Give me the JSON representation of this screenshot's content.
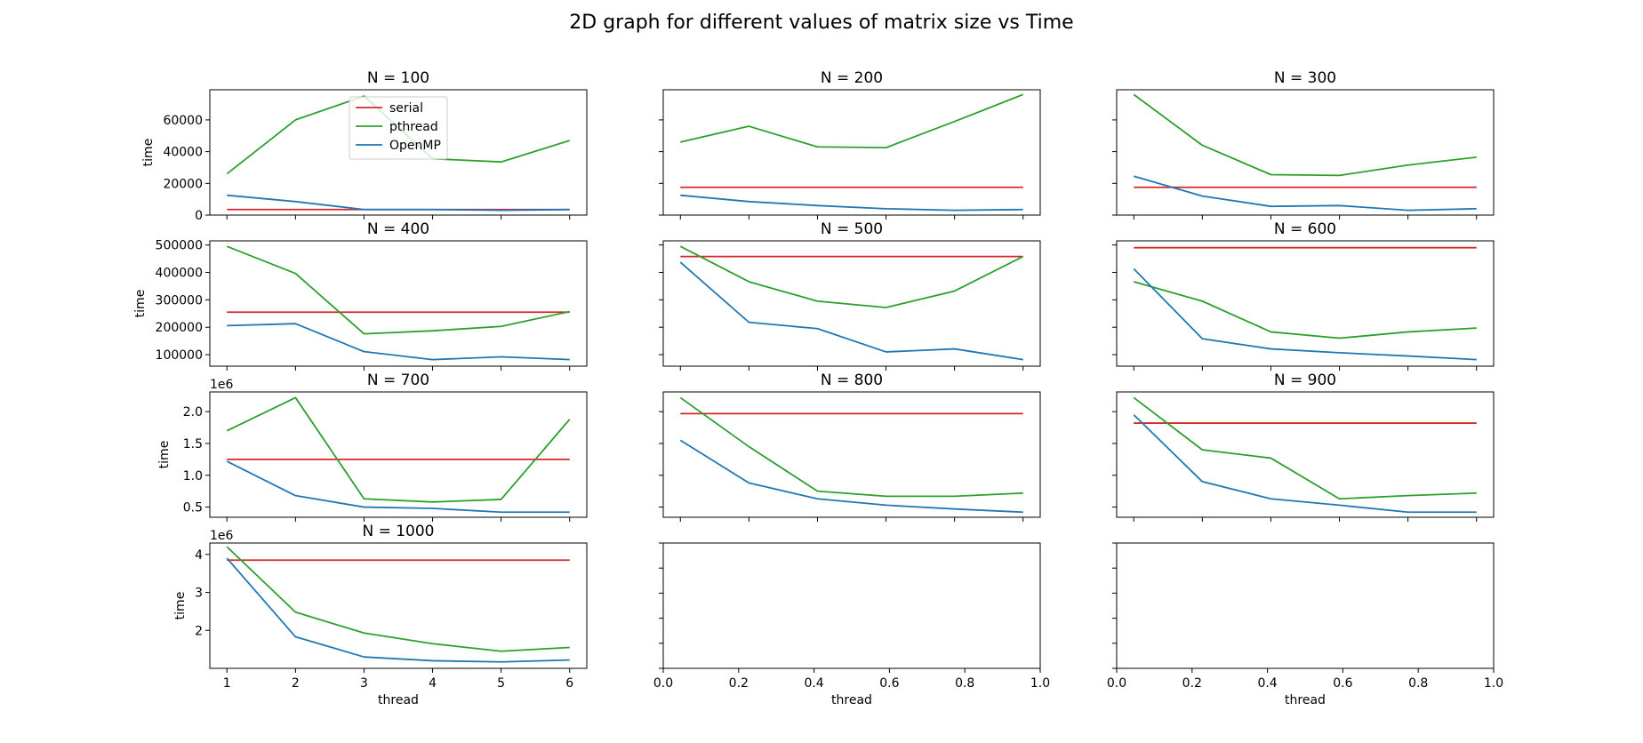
{
  "figure": {
    "suptitle": "2D graph for different values of matrix size vs Time",
    "legend": {
      "entries": [
        {
          "label": "serial",
          "color": "#d62728"
        },
        {
          "label": "pthread",
          "color": "#2ca02c"
        },
        {
          "label": "OpenMP",
          "color": "#1f77b4"
        }
      ]
    }
  },
  "chart_data": [
    {
      "type": "line",
      "title": "N = 100",
      "xlabel": "",
      "ylabel": "time",
      "x": [
        1,
        2,
        3,
        4,
        5,
        6
      ],
      "xlim": [
        0.75,
        6.25
      ],
      "ylim": [
        0,
        79000
      ],
      "yticks": [
        0,
        20000,
        40000,
        60000
      ],
      "ytick_labels": [
        "0",
        "20000",
        "40000",
        "60000"
      ],
      "offset_text": "",
      "xtick_labels_visible": false,
      "ytick_labels_visible": true,
      "legend_placement": "upper center",
      "series": [
        {
          "name": "serial",
          "color": "#d62728",
          "values": [
            3500,
            3500,
            3500,
            3500,
            3500,
            3500
          ]
        },
        {
          "name": "pthread",
          "color": "#2ca02c",
          "values": [
            26000,
            60000,
            75000,
            35500,
            33500,
            47000
          ]
        },
        {
          "name": "OpenMP",
          "color": "#1f77b4",
          "values": [
            12500,
            8500,
            3500,
            3500,
            3000,
            3500
          ]
        }
      ]
    },
    {
      "type": "line",
      "title": "N = 200",
      "xlabel": "",
      "ylabel": "",
      "x": [
        1,
        2,
        3,
        4,
        5,
        6
      ],
      "xlim": [
        0.75,
        6.25
      ],
      "ylim": [
        0,
        79000
      ],
      "yticks": [
        0,
        20000,
        40000,
        60000
      ],
      "ytick_labels": [],
      "offset_text": "",
      "xtick_labels_visible": false,
      "ytick_labels_visible": false,
      "series": [
        {
          "name": "serial",
          "color": "#d62728",
          "values": [
            17500,
            17500,
            17500,
            17500,
            17500,
            17500
          ]
        },
        {
          "name": "pthread",
          "color": "#2ca02c",
          "values": [
            46000,
            56000,
            43000,
            42500,
            59000,
            76000
          ]
        },
        {
          "name": "OpenMP",
          "color": "#1f77b4",
          "values": [
            12500,
            8500,
            6000,
            4000,
            3000,
            3500
          ]
        }
      ]
    },
    {
      "type": "line",
      "title": "N = 300",
      "xlabel": "",
      "ylabel": "",
      "x": [
        1,
        2,
        3,
        4,
        5,
        6
      ],
      "xlim": [
        0.75,
        6.25
      ],
      "ylim": [
        0,
        79000
      ],
      "yticks": [
        0,
        20000,
        40000,
        60000
      ],
      "ytick_labels": [],
      "offset_text": "",
      "xtick_labels_visible": false,
      "ytick_labels_visible": false,
      "series": [
        {
          "name": "serial",
          "color": "#d62728",
          "values": [
            17500,
            17500,
            17500,
            17500,
            17500,
            17500
          ]
        },
        {
          "name": "pthread",
          "color": "#2ca02c",
          "values": [
            76000,
            44000,
            25500,
            25000,
            31500,
            36500
          ]
        },
        {
          "name": "OpenMP",
          "color": "#1f77b4",
          "values": [
            24500,
            12000,
            5500,
            6000,
            3000,
            4000
          ]
        }
      ]
    },
    {
      "type": "line",
      "title": "N = 400",
      "xlabel": "",
      "ylabel": "time",
      "x": [
        1,
        2,
        3,
        4,
        5,
        6
      ],
      "xlim": [
        0.75,
        6.25
      ],
      "ylim": [
        58000,
        515000
      ],
      "yticks": [
        100000,
        200000,
        300000,
        400000,
        500000
      ],
      "ytick_labels": [
        "100000",
        "200000",
        "300000",
        "400000",
        "500000"
      ],
      "offset_text": "",
      "xtick_labels_visible": false,
      "ytick_labels_visible": true,
      "series": [
        {
          "name": "serial",
          "color": "#d62728",
          "values": [
            255000,
            255000,
            255000,
            255000,
            255000,
            255000
          ]
        },
        {
          "name": "pthread",
          "color": "#2ca02c",
          "values": [
            495000,
            396000,
            176000,
            187000,
            203000,
            257000
          ]
        },
        {
          "name": "OpenMP",
          "color": "#1f77b4",
          "values": [
            206000,
            213000,
            111000,
            82000,
            92000,
            82000
          ]
        }
      ]
    },
    {
      "type": "line",
      "title": "N = 500",
      "xlabel": "",
      "ylabel": "",
      "x": [
        1,
        2,
        3,
        4,
        5,
        6
      ],
      "xlim": [
        0.75,
        6.25
      ],
      "ylim": [
        58000,
        515000
      ],
      "yticks": [
        100000,
        200000,
        300000,
        400000,
        500000
      ],
      "ytick_labels": [],
      "offset_text": "",
      "xtick_labels_visible": false,
      "ytick_labels_visible": false,
      "series": [
        {
          "name": "serial",
          "color": "#d62728",
          "values": [
            458000,
            458000,
            458000,
            458000,
            458000,
            458000
          ]
        },
        {
          "name": "pthread",
          "color": "#2ca02c",
          "values": [
            495000,
            366000,
            295000,
            272000,
            332000,
            458000
          ]
        },
        {
          "name": "OpenMP",
          "color": "#1f77b4",
          "values": [
            437000,
            218000,
            195000,
            110000,
            121000,
            82000
          ]
        }
      ]
    },
    {
      "type": "line",
      "title": "N = 600",
      "xlabel": "",
      "ylabel": "",
      "x": [
        1,
        2,
        3,
        4,
        5,
        6
      ],
      "xlim": [
        0.75,
        6.25
      ],
      "ylim": [
        58000,
        515000
      ],
      "yticks": [
        100000,
        200000,
        300000,
        400000,
        500000
      ],
      "ytick_labels": [],
      "offset_text": "",
      "xtick_labels_visible": false,
      "ytick_labels_visible": false,
      "series": [
        {
          "name": "serial",
          "color": "#d62728",
          "values": [
            490000,
            490000,
            490000,
            490000,
            490000,
            490000
          ]
        },
        {
          "name": "pthread",
          "color": "#2ca02c",
          "values": [
            366000,
            295000,
            183000,
            160000,
            183000,
            197000
          ]
        },
        {
          "name": "OpenMP",
          "color": "#1f77b4",
          "values": [
            413000,
            158000,
            121000,
            107000,
            95000,
            82000
          ]
        }
      ]
    },
    {
      "type": "line",
      "title": "N = 700",
      "xlabel": "",
      "ylabel": "time",
      "x": [
        1,
        2,
        3,
        4,
        5,
        6
      ],
      "xlim": [
        0.75,
        6.25
      ],
      "ylim": [
        0.34,
        2.31
      ],
      "yticks": [
        0.5,
        1.0,
        1.5,
        2.0
      ],
      "ytick_labels": [
        "0.5",
        "1.0",
        "1.5",
        "2.0"
      ],
      "offset_text": "1e6",
      "xtick_labels_visible": false,
      "ytick_labels_visible": true,
      "series": [
        {
          "name": "serial",
          "color": "#d62728",
          "values": [
            1.25,
            1.25,
            1.25,
            1.25,
            1.25,
            1.25
          ]
        },
        {
          "name": "pthread",
          "color": "#2ca02c",
          "values": [
            1.7,
            2.22,
            0.63,
            0.58,
            0.62,
            1.88
          ]
        },
        {
          "name": "OpenMP",
          "color": "#1f77b4",
          "values": [
            1.22,
            0.68,
            0.5,
            0.48,
            0.42,
            0.42
          ]
        }
      ]
    },
    {
      "type": "line",
      "title": "N = 800",
      "xlabel": "",
      "ylabel": "",
      "x": [
        1,
        2,
        3,
        4,
        5,
        6
      ],
      "xlim": [
        0.75,
        6.25
      ],
      "ylim": [
        0.34,
        2.31
      ],
      "yticks": [
        0.5,
        1.0,
        1.5,
        2.0
      ],
      "ytick_labels": [],
      "offset_text": "",
      "xtick_labels_visible": false,
      "ytick_labels_visible": false,
      "series": [
        {
          "name": "serial",
          "color": "#d62728",
          "values": [
            1.97,
            1.97,
            1.97,
            1.97,
            1.97,
            1.97
          ]
        },
        {
          "name": "pthread",
          "color": "#2ca02c",
          "values": [
            2.22,
            1.45,
            0.75,
            0.67,
            0.67,
            0.72
          ]
        },
        {
          "name": "OpenMP",
          "color": "#1f77b4",
          "values": [
            1.55,
            0.88,
            0.63,
            0.53,
            0.47,
            0.42
          ]
        }
      ]
    },
    {
      "type": "line",
      "title": "N = 900",
      "xlabel": "",
      "ylabel": "",
      "x": [
        1,
        2,
        3,
        4,
        5,
        6
      ],
      "xlim": [
        0.75,
        6.25
      ],
      "ylim": [
        0.34,
        2.31
      ],
      "yticks": [
        0.5,
        1.0,
        1.5,
        2.0
      ],
      "ytick_labels": [],
      "offset_text": "",
      "xtick_labels_visible": false,
      "ytick_labels_visible": false,
      "series": [
        {
          "name": "serial",
          "color": "#d62728",
          "values": [
            1.82,
            1.82,
            1.82,
            1.82,
            1.82,
            1.82
          ]
        },
        {
          "name": "pthread",
          "color": "#2ca02c",
          "values": [
            2.22,
            1.4,
            1.27,
            0.63,
            0.68,
            0.72
          ]
        },
        {
          "name": "OpenMP",
          "color": "#1f77b4",
          "values": [
            1.95,
            0.9,
            0.63,
            0.53,
            0.42,
            0.42
          ]
        }
      ]
    },
    {
      "type": "line",
      "title": "N = 1000",
      "xlabel": "thread",
      "ylabel": "time",
      "x": [
        1,
        2,
        3,
        4,
        5,
        6
      ],
      "xlim": [
        0.75,
        6.25
      ],
      "ylim": [
        1.0,
        4.3
      ],
      "yticks": [
        2,
        3,
        4
      ],
      "ytick_labels": [
        "2",
        "3",
        "4"
      ],
      "offset_text": "1e6",
      "xticks": [
        1,
        2,
        3,
        4,
        5,
        6
      ],
      "xtick_labels": [
        "1",
        "2",
        "3",
        "4",
        "5",
        "6"
      ],
      "xtick_labels_visible": true,
      "ytick_labels_visible": true,
      "series": [
        {
          "name": "serial",
          "color": "#d62728",
          "values": [
            3.85,
            3.85,
            3.85,
            3.85,
            3.85,
            3.85
          ]
        },
        {
          "name": "pthread",
          "color": "#2ca02c",
          "values": [
            4.2,
            2.48,
            1.93,
            1.65,
            1.45,
            1.55
          ]
        },
        {
          "name": "OpenMP",
          "color": "#1f77b4",
          "values": [
            3.9,
            1.83,
            1.3,
            1.2,
            1.17,
            1.22
          ]
        }
      ]
    },
    {
      "type": "line",
      "title": "",
      "xlabel": "thread",
      "ylabel": "",
      "x": [],
      "xlim": [
        0,
        1
      ],
      "ylim": [
        0,
        1
      ],
      "yticks": [
        0,
        0.2,
        0.4,
        0.6,
        0.8,
        1.0
      ],
      "ytick_labels": [],
      "offset_text": "",
      "xticks": [
        0,
        0.2,
        0.4,
        0.6,
        0.8,
        1.0
      ],
      "xtick_labels": [
        "0.0",
        "0.2",
        "0.4",
        "0.6",
        "0.8",
        "1.0"
      ],
      "xtick_labels_visible": true,
      "ytick_labels_visible": false,
      "series": []
    },
    {
      "type": "line",
      "title": "",
      "xlabel": "thread",
      "ylabel": "",
      "x": [],
      "xlim": [
        0,
        1
      ],
      "ylim": [
        0,
        1
      ],
      "yticks": [
        0,
        0.2,
        0.4,
        0.6,
        0.8,
        1.0
      ],
      "ytick_labels": [],
      "offset_text": "",
      "xticks": [
        0,
        0.2,
        0.4,
        0.6,
        0.8,
        1.0
      ],
      "xtick_labels": [
        "0.0",
        "0.2",
        "0.4",
        "0.6",
        "0.8",
        "1.0"
      ],
      "xtick_labels_visible": true,
      "ytick_labels_visible": false,
      "series": []
    }
  ]
}
